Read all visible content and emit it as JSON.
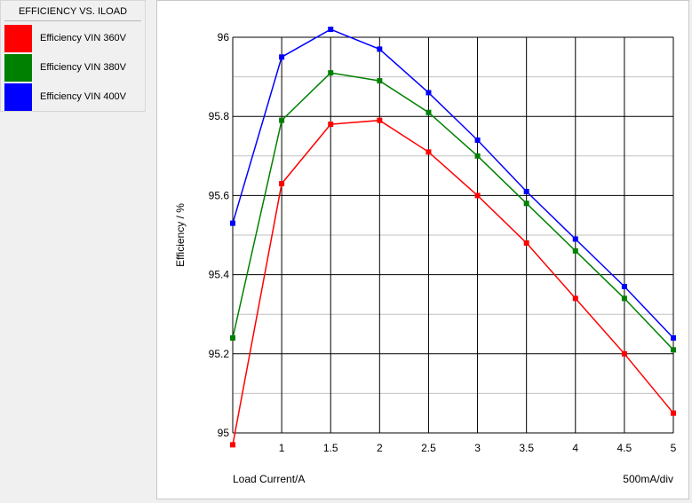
{
  "legend": {
    "title": "EFFICIENCY VS. ILOAD",
    "items": [
      {
        "label": "Efficiency VIN 360V",
        "color": "#ff0000"
      },
      {
        "label": "Efficiency VIN 380V",
        "color": "#008000"
      },
      {
        "label": "Efficiency VIN 400V",
        "color": "#0000ff"
      }
    ]
  },
  "chart_data": {
    "type": "line",
    "title": "",
    "xlabel": "Load Current/A",
    "ylabel": "Efficiency / %",
    "xscale_note": "500mA/div",
    "xlim": [
      0.5,
      5
    ],
    "ylim": [
      95,
      96
    ],
    "x_ticks": [
      "1",
      "1.5",
      "2",
      "2.5",
      "3",
      "3.5",
      "4",
      "4.5",
      "5"
    ],
    "y_ticks": [
      "95",
      "95.2",
      "95.4",
      "95.6",
      "95.8",
      "96"
    ],
    "grid": true,
    "x": [
      0.5,
      1,
      1.5,
      2,
      2.5,
      3,
      3.5,
      4,
      4.5,
      5
    ],
    "series": [
      {
        "name": "Efficiency VIN 360V",
        "color": "#ff0000",
        "values": [
          94.97,
          95.63,
          95.78,
          95.79,
          95.71,
          95.6,
          95.48,
          95.34,
          95.2,
          95.05
        ]
      },
      {
        "name": "Efficiency VIN 380V",
        "color": "#008000",
        "values": [
          95.24,
          95.79,
          95.91,
          95.89,
          95.81,
          95.7,
          95.58,
          95.46,
          95.34,
          95.21
        ]
      },
      {
        "name": "Efficiency VIN 400V",
        "color": "#0000ff",
        "values": [
          95.53,
          95.95,
          96.02,
          95.97,
          95.86,
          95.74,
          95.61,
          95.49,
          95.37,
          95.24
        ]
      }
    ]
  }
}
